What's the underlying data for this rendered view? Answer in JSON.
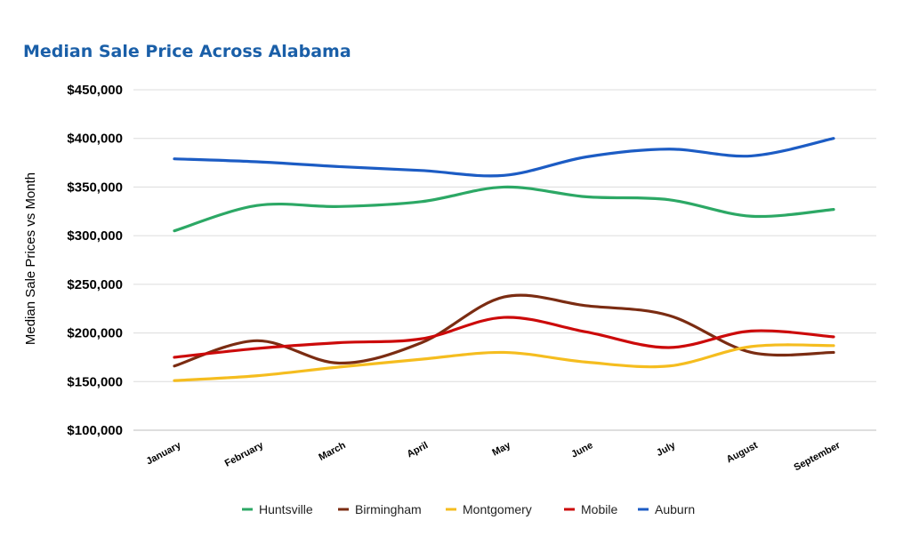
{
  "chart_data": {
    "type": "line",
    "title": "Median Sale Price Across Alabama",
    "xlabel": "",
    "ylabel": "Median Sale Prices vs Month",
    "categories": [
      "January",
      "February",
      "March",
      "April",
      "May",
      "June",
      "July",
      "August",
      "September"
    ],
    "ylim": [
      100000,
      450000
    ],
    "yticks": [
      100000,
      150000,
      200000,
      250000,
      300000,
      350000,
      400000,
      450000
    ],
    "ytick_labels": [
      "$100,000",
      "$150,000",
      "$200,000",
      "$250,000",
      "$300,000",
      "$350,000",
      "$400,000",
      "$450,000"
    ],
    "grid": true,
    "smooth": true,
    "legend_position": "bottom",
    "series": [
      {
        "name": "Huntsville",
        "color": "#2ca865",
        "values": [
          305000,
          331000,
          330000,
          335000,
          350000,
          340000,
          337000,
          320000,
          327000
        ]
      },
      {
        "name": "Birmingham",
        "color": "#7b2c12",
        "values": [
          166000,
          192000,
          169000,
          190000,
          237000,
          228000,
          218000,
          180000,
          180000
        ]
      },
      {
        "name": "Montgomery",
        "color": "#f5bd1f",
        "values": [
          151000,
          156000,
          165000,
          173000,
          180000,
          170000,
          166000,
          186000,
          187000
        ]
      },
      {
        "name": "Mobile",
        "color": "#cc0a0a",
        "values": [
          175000,
          184000,
          190000,
          194000,
          216000,
          201000,
          185000,
          202000,
          196000
        ]
      },
      {
        "name": "Auburn",
        "color": "#1c5cc4",
        "values": [
          379000,
          376000,
          371000,
          367000,
          362000,
          381000,
          389000,
          382000,
          400000
        ]
      }
    ]
  }
}
